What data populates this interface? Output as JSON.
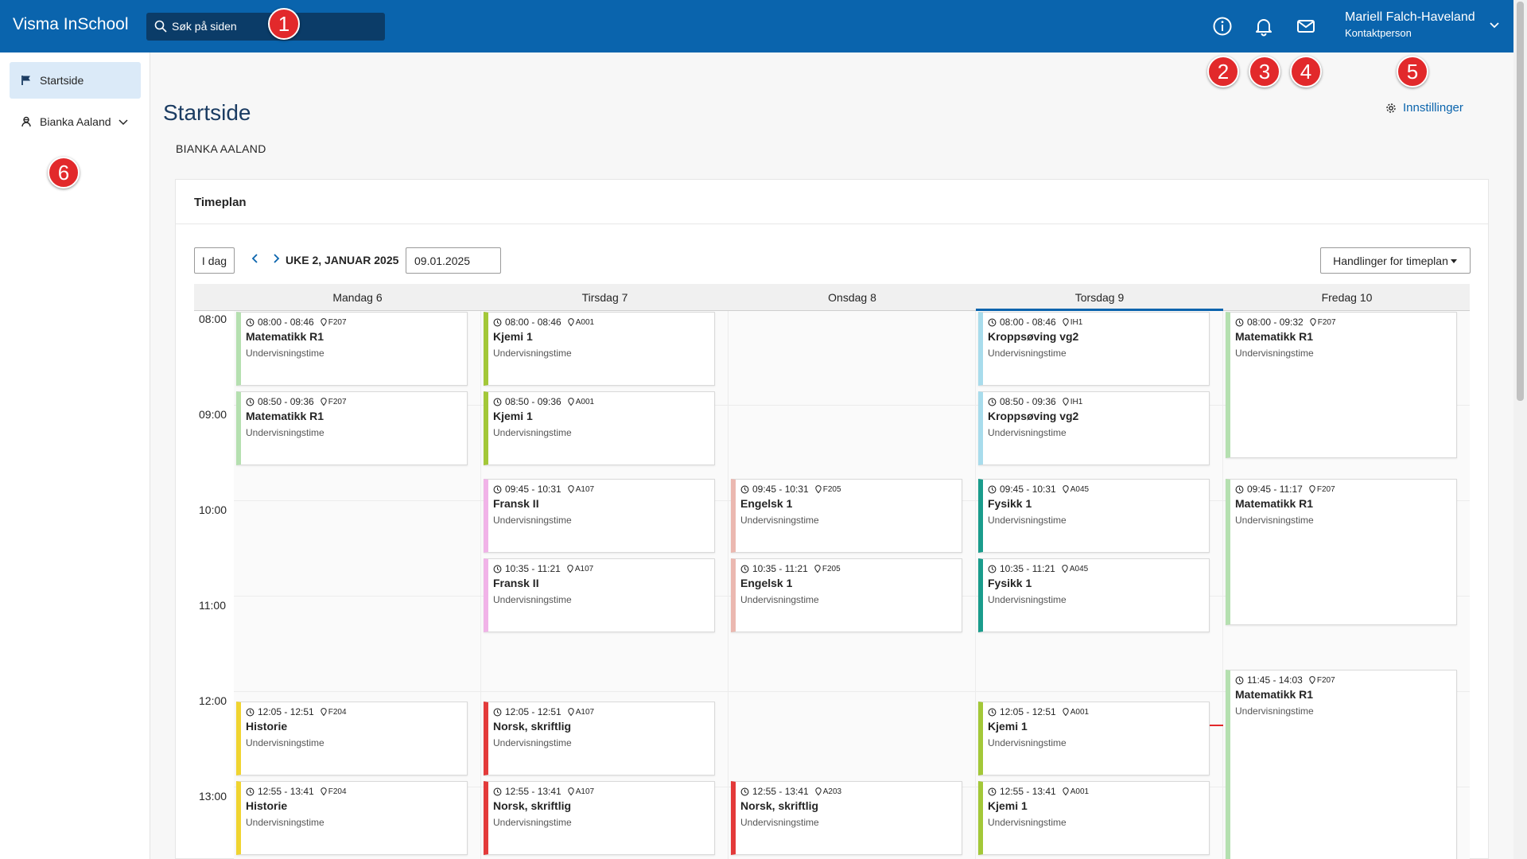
{
  "app": {
    "brand": "Visma InSchool"
  },
  "search": {
    "placeholder": "Søk på siden"
  },
  "user": {
    "name": "Mariell Falch-Haveland",
    "role": "Kontaktperson"
  },
  "icons": {
    "info": "info-icon",
    "bell": "bell-icon",
    "mail": "mail-icon",
    "gear": "gear-icon"
  },
  "badges": [
    "1",
    "2",
    "3",
    "4",
    "5",
    "6"
  ],
  "sidebar": {
    "items": [
      {
        "label": "Startside",
        "icon": "flag-icon",
        "active": true
      },
      {
        "label": "Bianka Aaland",
        "icon": "student-icon",
        "active": false
      }
    ]
  },
  "page": {
    "title": "Startside",
    "settings_label": "Innstillinger",
    "student_name": "BIANKA AALAND"
  },
  "timeplan": {
    "title": "Timeplan",
    "today_button": "I dag",
    "week_label": "UKE 2, JANUAR 2025",
    "date_value": "09.01.2025",
    "actions_button": "Handlinger for timeplan",
    "hours": [
      "08:00",
      "09:00",
      "10:00",
      "11:00",
      "12:00",
      "13:00"
    ],
    "days": [
      {
        "label": "Mandag 6",
        "today": false
      },
      {
        "label": "Tirsdag 7",
        "today": false
      },
      {
        "label": "Onsdag 8",
        "today": false
      },
      {
        "label": "Torsdag 9",
        "today": true
      },
      {
        "label": "Fredag 10",
        "today": false
      }
    ],
    "events": [
      {
        "day": 0,
        "start": "08:00",
        "end": "08:46",
        "time": "08:00 - 08:46",
        "room": "F207",
        "subject": "Matematikk R1",
        "type": "Undervisningstime",
        "color": "#b5e0b0"
      },
      {
        "day": 0,
        "start": "08:50",
        "end": "09:36",
        "time": "08:50 - 09:36",
        "room": "F207",
        "subject": "Matematikk R1",
        "type": "Undervisningstime",
        "color": "#b5e0b0"
      },
      {
        "day": 0,
        "start": "12:05",
        "end": "12:51",
        "time": "12:05 - 12:51",
        "room": "F204",
        "subject": "Historie",
        "type": "Undervisningstime",
        "color": "#f0d430"
      },
      {
        "day": 0,
        "start": "12:55",
        "end": "13:41",
        "time": "12:55 - 13:41",
        "room": "F204",
        "subject": "Historie",
        "type": "Undervisningstime",
        "color": "#f0d430"
      },
      {
        "day": 1,
        "start": "08:00",
        "end": "08:46",
        "time": "08:00 - 08:46",
        "room": "A001",
        "subject": "Kjemi 1",
        "type": "Undervisningstime",
        "color": "#a3c838"
      },
      {
        "day": 1,
        "start": "08:50",
        "end": "09:36",
        "time": "08:50 - 09:36",
        "room": "A001",
        "subject": "Kjemi 1",
        "type": "Undervisningstime",
        "color": "#a3c838"
      },
      {
        "day": 1,
        "start": "09:45",
        "end": "10:31",
        "time": "09:45 - 10:31",
        "room": "A107",
        "subject": "Fransk II",
        "type": "Undervisningstime",
        "color": "#f1b3e8"
      },
      {
        "day": 1,
        "start": "10:35",
        "end": "11:21",
        "time": "10:35 - 11:21",
        "room": "A107",
        "subject": "Fransk II",
        "type": "Undervisningstime",
        "color": "#f1b3e8"
      },
      {
        "day": 1,
        "start": "12:05",
        "end": "12:51",
        "time": "12:05 - 12:51",
        "room": "A107",
        "subject": "Norsk, skriftlig",
        "type": "Undervisningstime",
        "color": "#e33a3a"
      },
      {
        "day": 1,
        "start": "12:55",
        "end": "13:41",
        "time": "12:55 - 13:41",
        "room": "A107",
        "subject": "Norsk, skriftlig",
        "type": "Undervisningstime",
        "color": "#e33a3a"
      },
      {
        "day": 2,
        "start": "09:45",
        "end": "10:31",
        "time": "09:45 - 10:31",
        "room": "F205",
        "subject": "Engelsk 1",
        "type": "Undervisningstime",
        "color": "#ebb8b0"
      },
      {
        "day": 2,
        "start": "10:35",
        "end": "11:21",
        "time": "10:35 - 11:21",
        "room": "F205",
        "subject": "Engelsk 1",
        "type": "Undervisningstime",
        "color": "#ebb8b0"
      },
      {
        "day": 2,
        "start": "12:55",
        "end": "13:41",
        "time": "12:55 - 13:41",
        "room": "A203",
        "subject": "Norsk, skriftlig",
        "type": "Undervisningstime",
        "color": "#e33a3a"
      },
      {
        "day": 3,
        "start": "08:00",
        "end": "08:46",
        "time": "08:00 - 08:46",
        "room": "IH1",
        "subject": "Kroppsøving vg2",
        "type": "Undervisningstime",
        "color": "#a8dcec"
      },
      {
        "day": 3,
        "start": "08:50",
        "end": "09:36",
        "time": "08:50 - 09:36",
        "room": "IH1",
        "subject": "Kroppsøving vg2",
        "type": "Undervisningstime",
        "color": "#a8dcec"
      },
      {
        "day": 3,
        "start": "09:45",
        "end": "10:31",
        "time": "09:45 - 10:31",
        "room": "A045",
        "subject": "Fysikk 1",
        "type": "Undervisningstime",
        "color": "#1a9c8c"
      },
      {
        "day": 3,
        "start": "10:35",
        "end": "11:21",
        "time": "10:35 - 11:21",
        "room": "A045",
        "subject": "Fysikk 1",
        "type": "Undervisningstime",
        "color": "#1a9c8c"
      },
      {
        "day": 3,
        "start": "12:05",
        "end": "12:51",
        "time": "12:05 - 12:51",
        "room": "A001",
        "subject": "Kjemi 1",
        "type": "Undervisningstime",
        "color": "#a3c838"
      },
      {
        "day": 3,
        "start": "12:55",
        "end": "13:41",
        "time": "12:55 - 13:41",
        "room": "A001",
        "subject": "Kjemi 1",
        "type": "Undervisningstime",
        "color": "#a3c838"
      },
      {
        "day": 4,
        "start": "08:00",
        "end": "09:32",
        "time": "08:00 - 09:32",
        "room": "F207",
        "subject": "Matematikk R1",
        "type": "Undervisningstime",
        "color": "#b5e0b0"
      },
      {
        "day": 4,
        "start": "09:45",
        "end": "11:17",
        "time": "09:45 - 11:17",
        "room": "F207",
        "subject": "Matematikk R1",
        "type": "Undervisningstime",
        "color": "#b5e0b0"
      },
      {
        "day": 4,
        "start": "11:45",
        "end": "14:03",
        "time": "11:45 - 14:03",
        "room": "F207",
        "subject": "Matematikk R1",
        "type": "Undervisningstime",
        "color": "#b5e0b0"
      }
    ],
    "current_time": "12:20"
  }
}
